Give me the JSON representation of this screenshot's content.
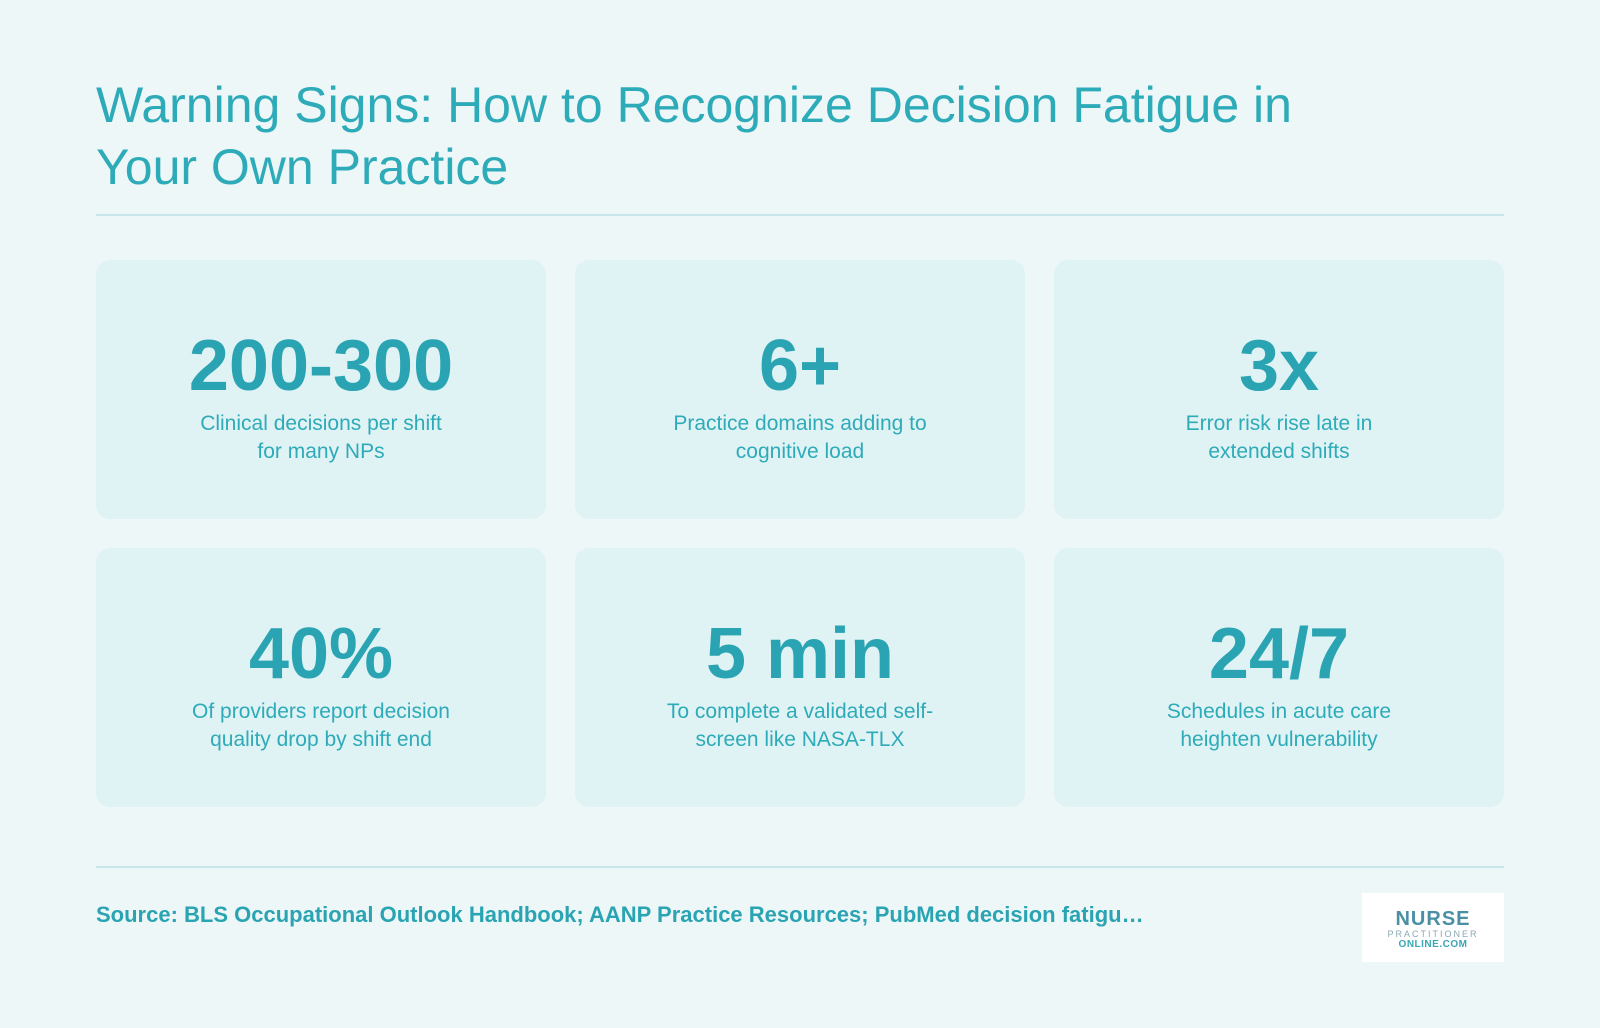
{
  "title": "Warning Signs: How to Recognize Decision Fatigue in Your Own Practice",
  "cards": [
    {
      "stat": "200-300",
      "description": "Clinical decisions per shift for many NPs"
    },
    {
      "stat": "6+",
      "description": "Practice domains adding to cognitive load"
    },
    {
      "stat": "3x",
      "description": "Error risk rise late in extended shifts"
    },
    {
      "stat": "40%",
      "description": "Of providers report decision quality drop by shift end"
    },
    {
      "stat": "5 min",
      "description": "To complete a validated self-screen like NASA-TLX"
    },
    {
      "stat": "24/7",
      "description": "Schedules in acute care heighten vulnerability"
    }
  ],
  "source": "Source: BLS Occupational Outlook Handbook; AANP Practice Resources; PubMed decision fatigu…",
  "logo": {
    "main": "NURSE",
    "sub": "PRACTITIONER",
    "domain": "ONLINE.COM"
  },
  "colors": {
    "background": "#eef7f8",
    "card": "#dff2f4",
    "accent": "#2aa4b2"
  }
}
